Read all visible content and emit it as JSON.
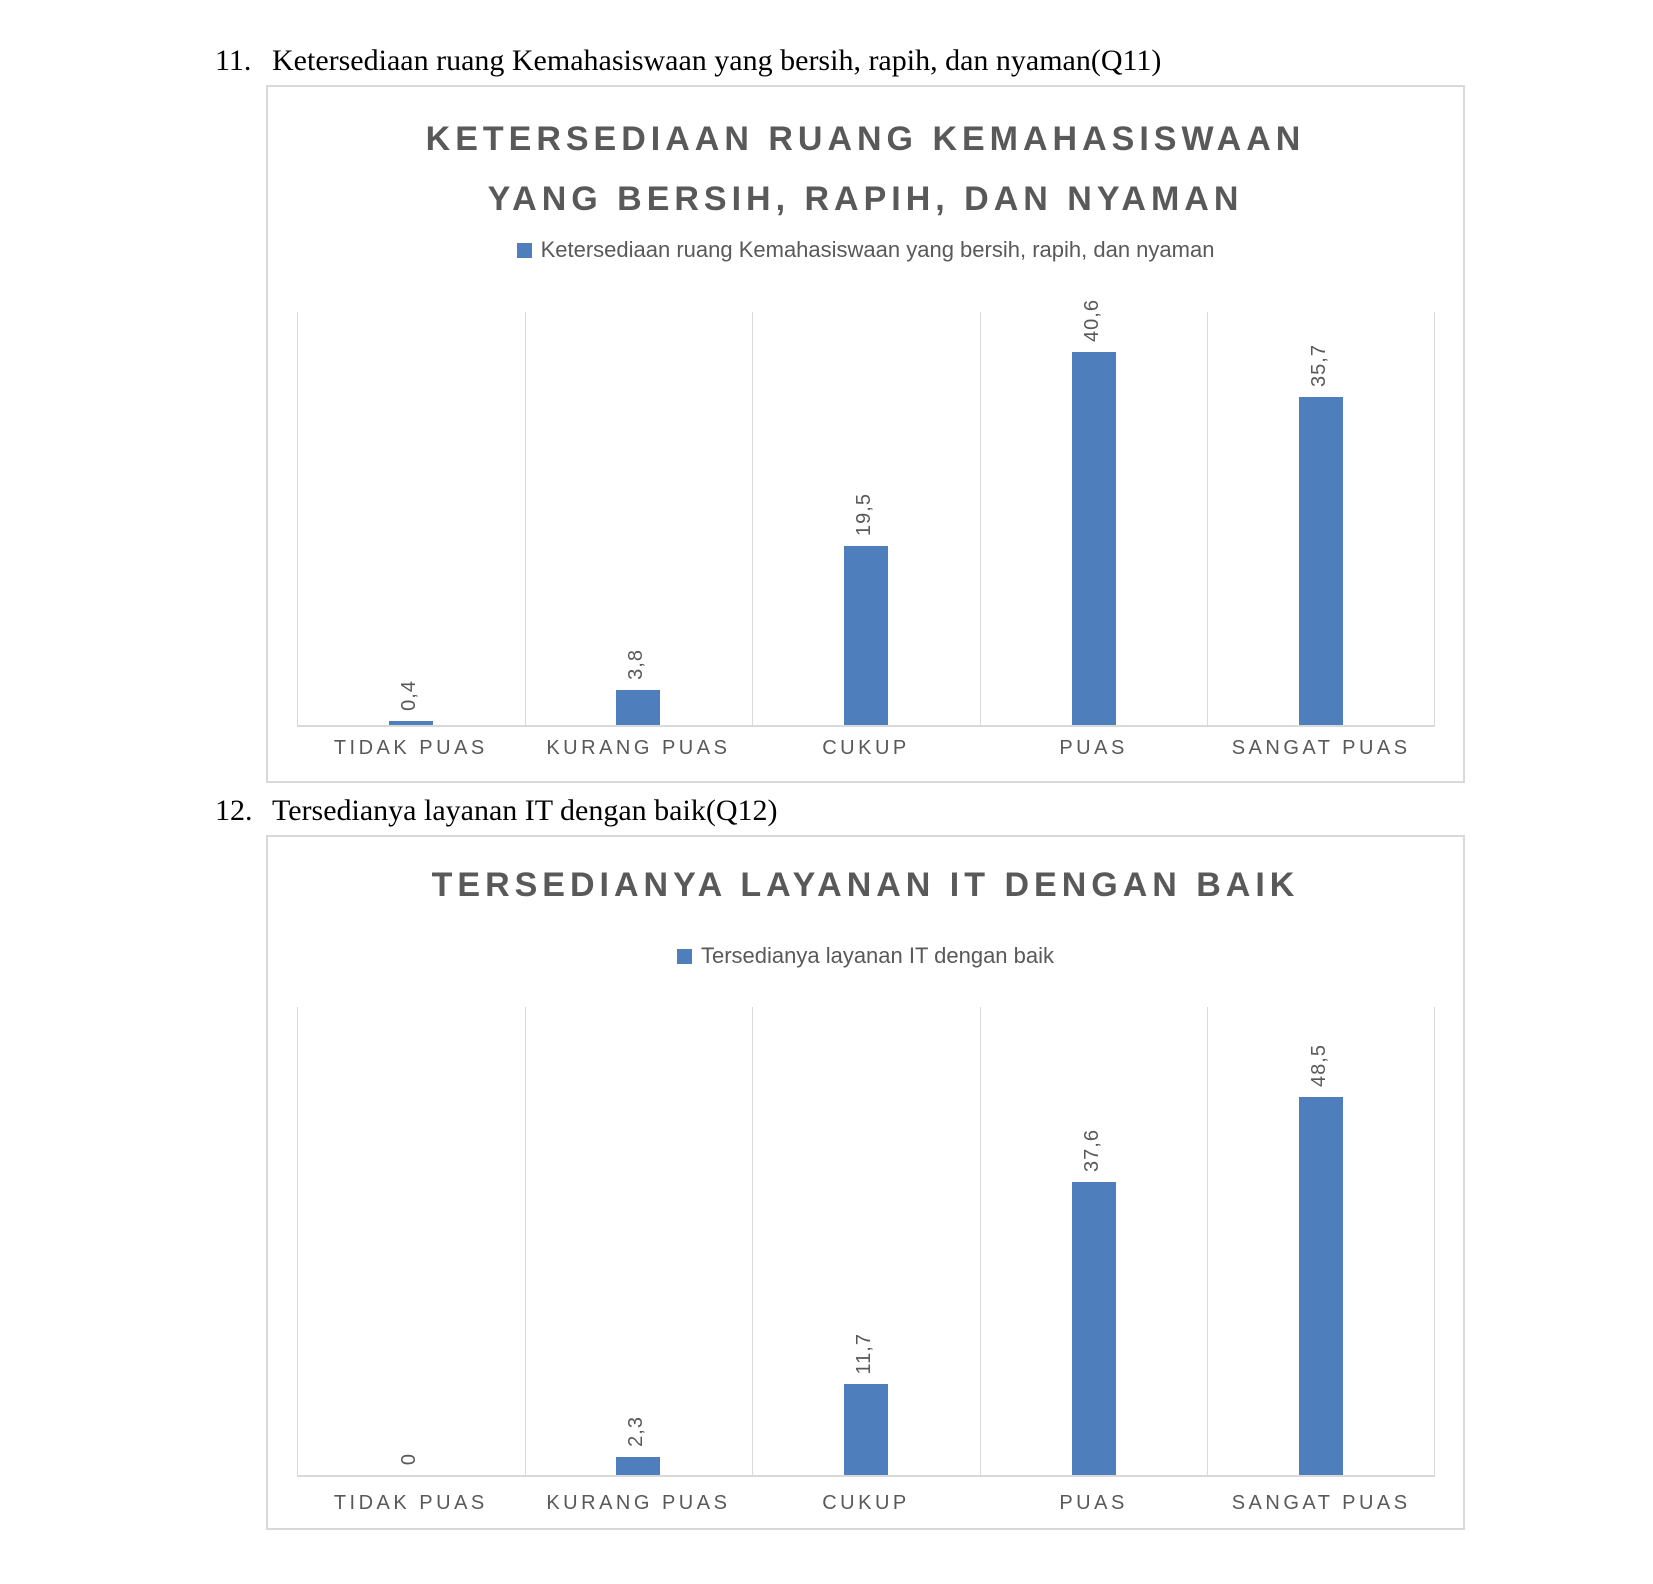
{
  "headings": [
    {
      "number": "11.",
      "text": "Ketersediaan ruang Kemahasiswaan yang bersih, rapih, dan nyaman(Q11)"
    },
    {
      "number": "12.",
      "text": "Tersedianya layanan IT dengan baik(Q12)"
    }
  ],
  "chart_data": [
    {
      "type": "bar",
      "title": "KETERSEDIAAN RUANG KEMAHASISWAAN YANG BERSIH, RAPIH, DAN NYAMAN",
      "legend": "Ketersediaan ruang Kemahasiswaan yang bersih, rapih, dan nyaman",
      "categories": [
        "TIDAK PUAS",
        "KURANG PUAS",
        "CUKUP",
        "PUAS",
        "SANGAT PUAS"
      ],
      "values": [
        0.4,
        3.8,
        19.5,
        40.6,
        35.7
      ],
      "labels": [
        "0,4",
        "3,8",
        "19,5",
        "40,6",
        "35,7"
      ],
      "ylim": [
        0,
        45
      ],
      "grid": "vertical-category-lines",
      "legend_position": "top-center",
      "data_label_rotation": "vertical-bottom-to-top",
      "bar_color": "#4e7fbc",
      "grid_color": "#d9d9d9",
      "text_color": "#595959"
    },
    {
      "type": "bar",
      "title": "TERSEDIANYA LAYANAN IT DENGAN BAIK",
      "legend": "Tersedianya layanan IT dengan baik",
      "categories": [
        "TIDAK PUAS",
        "KURANG PUAS",
        "CUKUP",
        "PUAS",
        "SANGAT PUAS"
      ],
      "values": [
        0,
        2.3,
        11.7,
        37.6,
        48.5
      ],
      "labels": [
        "0",
        "2,3",
        "11,7",
        "37,6",
        "48,5"
      ],
      "ylim": [
        0,
        60
      ],
      "grid": "vertical-category-lines",
      "legend_position": "top-center",
      "data_label_rotation": "vertical-bottom-to-top",
      "bar_color": "#4e7fbc",
      "grid_color": "#d9d9d9",
      "text_color": "#595959"
    }
  ]
}
